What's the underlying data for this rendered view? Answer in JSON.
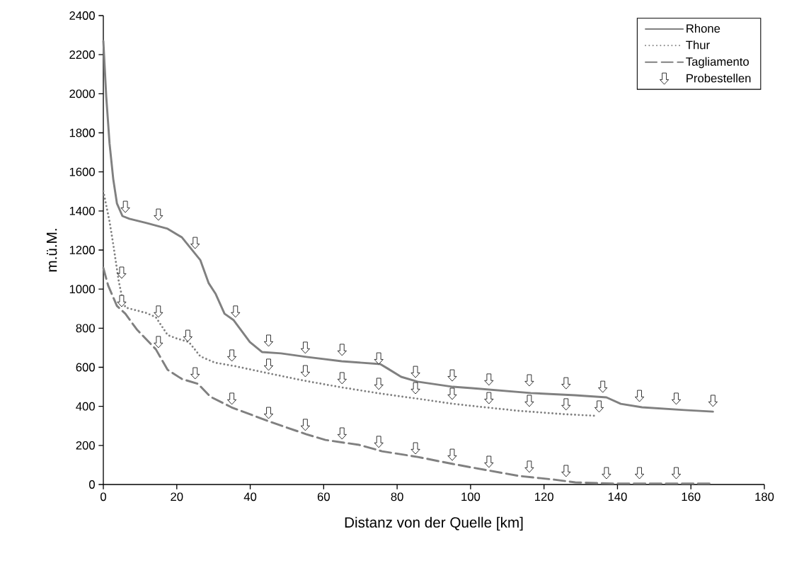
{
  "chart_data": {
    "type": "line",
    "xlabel": "Distanz von der Quelle [km]",
    "ylabel": "m.ü.M.",
    "xlim": [
      0,
      180
    ],
    "xticks": [
      0,
      20,
      40,
      60,
      80,
      100,
      120,
      140,
      160,
      180
    ],
    "ylim": [
      0,
      2400
    ],
    "yticks": [
      0,
      200,
      400,
      600,
      800,
      1000,
      1200,
      1400,
      1600,
      1800,
      2000,
      2200,
      2400
    ],
    "legend": "top right",
    "series": [
      {
        "name": "Rhone",
        "color": "#808080",
        "line_style": "solid",
        "x": [
          0,
          0.8,
          1.7,
          2.7,
          3.7,
          5.2,
          7.1,
          11.8,
          17.5,
          21.4,
          26.4,
          28.7,
          30.6,
          33,
          35.5,
          39.9,
          43.2,
          48.4,
          55.3,
          64.9,
          75.4,
          77.3,
          81.1,
          85.6,
          95.2,
          100.4,
          116.4,
          128.5,
          137,
          140.9,
          146.7,
          158.2,
          166
        ],
        "values": [
          2270,
          1983,
          1744,
          1563,
          1439,
          1374,
          1360,
          1338,
          1309,
          1265,
          1149,
          1030,
          975,
          874,
          841,
          729,
          678,
          671,
          653,
          631,
          616,
          595,
          551,
          526,
          500,
          493,
          468,
          457,
          446,
          413,
          395,
          381,
          373
        ]
      },
      {
        "name": "Thur",
        "color": "#808080",
        "line_style": "dotted",
        "x": [
          0,
          0.4,
          1.7,
          2.7,
          4.2,
          5,
          6,
          11.8,
          14.3,
          17.5,
          20,
          23.3,
          26.4,
          30.3,
          36,
          43.2,
          54.2,
          64.9,
          75.9,
          85.6,
          95.2,
          100.4,
          113.1,
          126,
          133.7
        ],
        "values": [
          1501,
          1465,
          1345,
          1229,
          1040,
          968,
          906,
          877,
          856,
          765,
          747,
          729,
          656,
          624,
          605,
          576,
          533,
          497,
          464,
          439,
          413,
          402,
          377,
          359,
          352
        ]
      },
      {
        "name": "Tagliamento",
        "color": "#808080",
        "line_style": "dashed",
        "x": [
          0,
          1.3,
          3.7,
          6,
          9.1,
          14.3,
          17.5,
          21.4,
          25.8,
          29.1,
          34.9,
          45.1,
          55.3,
          60.5,
          69.6,
          75.9,
          85.6,
          95.2,
          100.4,
          113.1,
          122.8,
          128.5,
          138.9,
          151.7,
          166
        ],
        "values": [
          1109,
          1019,
          914,
          874,
          794,
          692,
          587,
          540,
          515,
          450,
          395,
          323,
          257,
          228,
          203,
          170,
          141,
          105,
          87,
          44,
          25,
          11,
          5,
          5,
          5
        ]
      },
      {
        "name": "Probestellen",
        "type": "scatter",
        "color": "#ffffff",
        "x": [
          6,
          15,
          25,
          36,
          45,
          55,
          65,
          75,
          85,
          95,
          105,
          116,
          126,
          136,
          146,
          156,
          166,
          5,
          5,
          15,
          23,
          35,
          45,
          55,
          65,
          75,
          85,
          95,
          105,
          116,
          126,
          135,
          15,
          25,
          35,
          45,
          55,
          65,
          75,
          85,
          95,
          105,
          116,
          126,
          137,
          146,
          156
        ],
        "values": [
          1421,
          1381,
          1236,
          885,
          736,
          700,
          689,
          645,
          576,
          558,
          537,
          533,
          518,
          500,
          453,
          439,
          428,
          1084,
          939,
          885,
          761,
          660,
          613,
          580,
          544,
          515,
          493,
          464,
          442,
          428,
          410,
          399,
          729,
          569,
          439,
          366,
          305,
          261,
          218,
          185,
          152,
          116,
          91,
          69,
          58,
          58,
          58
        ]
      }
    ]
  }
}
